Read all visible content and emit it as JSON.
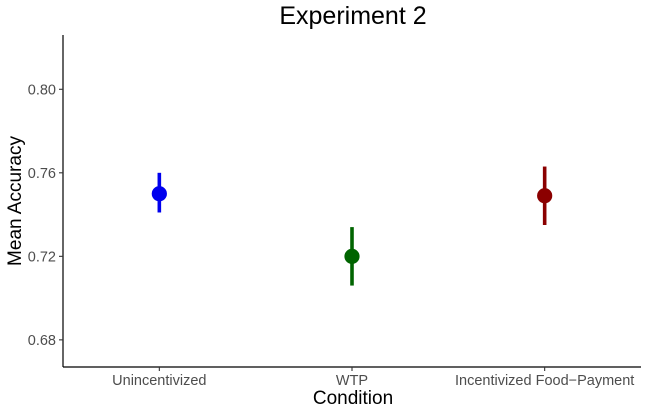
{
  "chart_data": {
    "type": "scatter",
    "title": "Experiment 2",
    "xlabel": "Condition",
    "ylabel": "Mean Accuracy",
    "ylim": [
      0.667,
      0.826
    ],
    "yticks": [
      0.68,
      0.72,
      0.76,
      0.8
    ],
    "ytick_labels": [
      "0.68",
      "0.72",
      "0.76",
      "0.80"
    ],
    "grid": false,
    "legend": "none",
    "categories": [
      "Unincentivized",
      "WTP",
      "Incentivized Food−Payment"
    ],
    "points": [
      {
        "category": "Unincentivized",
        "mean": 0.75,
        "lower": 0.741,
        "upper": 0.76,
        "color": "#0000ee"
      },
      {
        "category": "WTP",
        "mean": 0.72,
        "lower": 0.706,
        "upper": 0.734,
        "color": "#006400"
      },
      {
        "category": "Incentivized Food−Payment",
        "mean": 0.749,
        "lower": 0.735,
        "upper": 0.763,
        "color": "#8b0000"
      }
    ]
  }
}
